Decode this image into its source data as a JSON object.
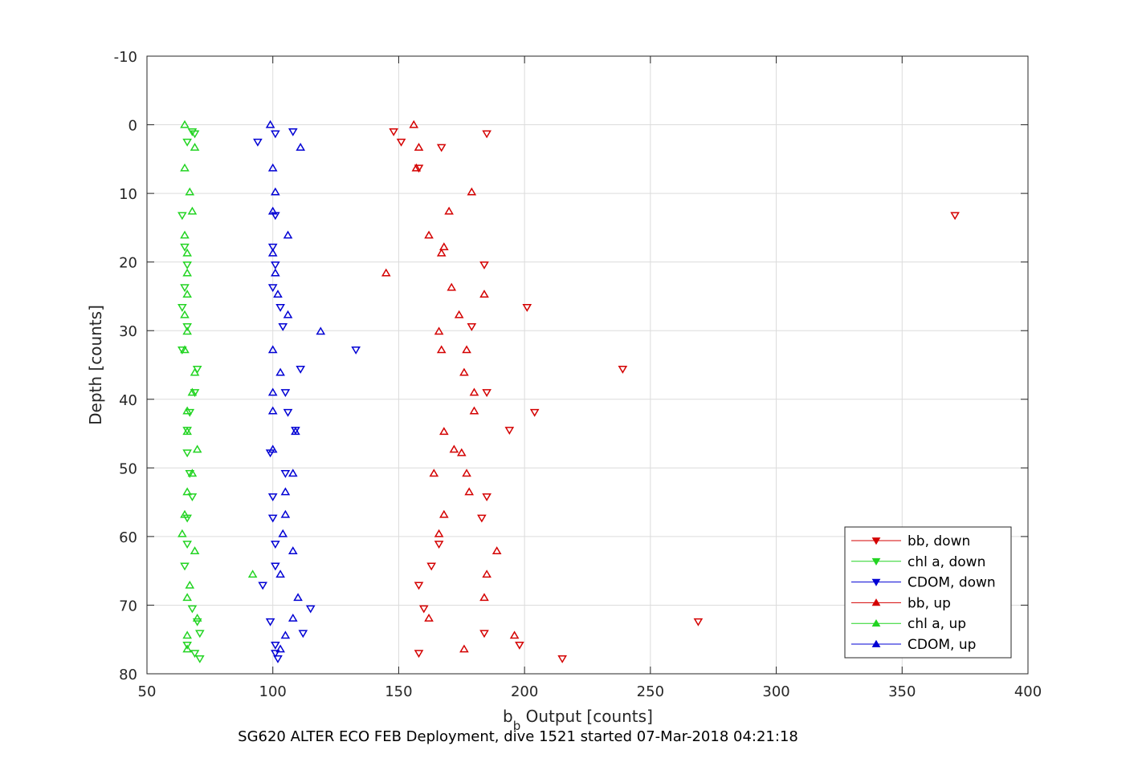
{
  "chart_data": {
    "type": "scatter",
    "xlabel_main": "b",
    "xlabel_sub": "b",
    "xlabel_rest": " Output [counts]",
    "ylabel": "Depth [counts]",
    "caption": "SG620 ALTER ECO FEB Deployment, dive 1521 started 07-Mar-2018 04:21:18",
    "xlim": [
      50,
      400
    ],
    "ylim": [
      -10,
      80
    ],
    "y_reversed": true,
    "xticks": [
      50,
      100,
      150,
      200,
      250,
      300,
      350,
      400
    ],
    "yticks": [
      -10,
      0,
      10,
      20,
      30,
      40,
      50,
      60,
      70,
      80
    ],
    "grid": true,
    "legend_position": "bottom-right",
    "series": [
      {
        "name": "bb, down",
        "color": "#d40000",
        "marker": "triangle-down",
        "points": [
          [
            148,
            1
          ],
          [
            185,
            1.3
          ],
          [
            151,
            2.5
          ],
          [
            371,
            13.2
          ],
          [
            184,
            20.4
          ],
          [
            201,
            26.6
          ],
          [
            179,
            29.4
          ],
          [
            239,
            35.6
          ],
          [
            185,
            39
          ],
          [
            204,
            41.9
          ],
          [
            194,
            44.5
          ],
          [
            185,
            54.2
          ],
          [
            183,
            57.3
          ],
          [
            166,
            61.1
          ],
          [
            163,
            64.3
          ],
          [
            158,
            67.1
          ],
          [
            160,
            70.5
          ],
          [
            184,
            74.1
          ],
          [
            269,
            72.4
          ],
          [
            198,
            75.8
          ],
          [
            215,
            77.8
          ],
          [
            158,
            77
          ],
          [
            167,
            3.3
          ],
          [
            158,
            6.3
          ]
        ]
      },
      {
        "name": "chl a, down",
        "color": "#22d422",
        "marker": "triangle-down",
        "points": [
          [
            68,
            1
          ],
          [
            69,
            1.3
          ],
          [
            66,
            2.5
          ],
          [
            64,
            13.2
          ],
          [
            65,
            17.8
          ],
          [
            66,
            20.4
          ],
          [
            65,
            23.7
          ],
          [
            64,
            26.6
          ],
          [
            66,
            29.4
          ],
          [
            64,
            32.8
          ],
          [
            70,
            35.6
          ],
          [
            69,
            39
          ],
          [
            67,
            41.9
          ],
          [
            66,
            44.5
          ],
          [
            66,
            47.8
          ],
          [
            67,
            50.8
          ],
          [
            68,
            54.2
          ],
          [
            66,
            57.3
          ],
          [
            66,
            61.1
          ],
          [
            65,
            64.3
          ],
          [
            68,
            70.5
          ],
          [
            71,
            74.1
          ],
          [
            70,
            72.4
          ],
          [
            66,
            75.8
          ],
          [
            71,
            77.8
          ],
          [
            69,
            77
          ]
        ]
      },
      {
        "name": "CDOM, down",
        "color": "#0000d4",
        "marker": "triangle-down",
        "points": [
          [
            108,
            1
          ],
          [
            101,
            1.3
          ],
          [
            94,
            2.5
          ],
          [
            101,
            13.2
          ],
          [
            100,
            17.8
          ],
          [
            101,
            20.4
          ],
          [
            100,
            23.7
          ],
          [
            103,
            26.6
          ],
          [
            104,
            29.4
          ],
          [
            133,
            32.8
          ],
          [
            111,
            35.6
          ],
          [
            105,
            39
          ],
          [
            106,
            41.9
          ],
          [
            109,
            44.5
          ],
          [
            99,
            47.8
          ],
          [
            105,
            50.8
          ],
          [
            100,
            54.2
          ],
          [
            100,
            57.3
          ],
          [
            101,
            61.1
          ],
          [
            101,
            64.3
          ],
          [
            96,
            67.1
          ],
          [
            115,
            70.5
          ],
          [
            112,
            74.1
          ],
          [
            99,
            72.4
          ],
          [
            101,
            75.8
          ],
          [
            102,
            77.8
          ],
          [
            101,
            77
          ]
        ]
      },
      {
        "name": "bb, up",
        "color": "#d40000",
        "marker": "triangle-up",
        "points": [
          [
            156,
            0
          ],
          [
            158,
            3.3
          ],
          [
            157,
            6.3
          ],
          [
            179,
            9.8
          ],
          [
            170,
            12.6
          ],
          [
            162,
            16.1
          ],
          [
            168,
            17.8
          ],
          [
            167,
            18.7
          ],
          [
            145,
            21.6
          ],
          [
            171,
            23.7
          ],
          [
            184,
            24.7
          ],
          [
            174,
            27.7
          ],
          [
            166,
            30.1
          ],
          [
            177,
            32.8
          ],
          [
            167,
            32.8
          ],
          [
            176,
            36.1
          ],
          [
            180,
            39
          ],
          [
            180,
            41.7
          ],
          [
            168,
            44.7
          ],
          [
            172,
            47.3
          ],
          [
            175,
            47.8
          ],
          [
            164,
            50.8
          ],
          [
            177,
            50.8
          ],
          [
            178,
            53.5
          ],
          [
            168,
            56.8
          ],
          [
            166,
            59.6
          ],
          [
            189,
            62.1
          ],
          [
            185,
            65.5
          ],
          [
            184,
            68.9
          ],
          [
            162,
            71.9
          ],
          [
            196,
            74.4
          ],
          [
            176,
            76.4
          ]
        ]
      },
      {
        "name": "chl a, up",
        "color": "#22d422",
        "marker": "triangle-up",
        "points": [
          [
            65,
            0
          ],
          [
            69,
            3.3
          ],
          [
            65,
            6.3
          ],
          [
            67,
            9.8
          ],
          [
            68,
            12.6
          ],
          [
            65,
            16.1
          ],
          [
            66,
            18.7
          ],
          [
            66,
            21.6
          ],
          [
            66,
            24.7
          ],
          [
            65,
            27.7
          ],
          [
            66,
            30.1
          ],
          [
            65,
            32.8
          ],
          [
            69,
            36.1
          ],
          [
            68,
            39
          ],
          [
            66,
            41.7
          ],
          [
            66,
            44.7
          ],
          [
            70,
            47.3
          ],
          [
            68,
            50.8
          ],
          [
            66,
            53.5
          ],
          [
            65,
            56.8
          ],
          [
            64,
            59.6
          ],
          [
            69,
            62.1
          ],
          [
            92,
            65.5
          ],
          [
            67,
            67.1
          ],
          [
            66,
            68.9
          ],
          [
            70,
            71.9
          ],
          [
            66,
            74.4
          ],
          [
            66,
            76.4
          ]
        ]
      },
      {
        "name": "CDOM, up",
        "color": "#0000d4",
        "marker": "triangle-up",
        "points": [
          [
            99,
            0
          ],
          [
            111,
            3.3
          ],
          [
            100,
            6.3
          ],
          [
            101,
            9.8
          ],
          [
            100,
            12.6
          ],
          [
            106,
            16.1
          ],
          [
            100,
            18.7
          ],
          [
            101,
            21.6
          ],
          [
            102,
            24.7
          ],
          [
            106,
            27.7
          ],
          [
            119,
            30.1
          ],
          [
            100,
            32.8
          ],
          [
            103,
            36.1
          ],
          [
            100,
            39
          ],
          [
            100,
            41.7
          ],
          [
            109,
            44.7
          ],
          [
            100,
            47.3
          ],
          [
            108,
            50.8
          ],
          [
            105,
            53.5
          ],
          [
            105,
            56.8
          ],
          [
            104,
            59.6
          ],
          [
            108,
            62.1
          ],
          [
            103,
            65.5
          ],
          [
            110,
            68.9
          ],
          [
            108,
            71.9
          ],
          [
            105,
            74.4
          ],
          [
            103,
            76.4
          ]
        ]
      }
    ]
  }
}
